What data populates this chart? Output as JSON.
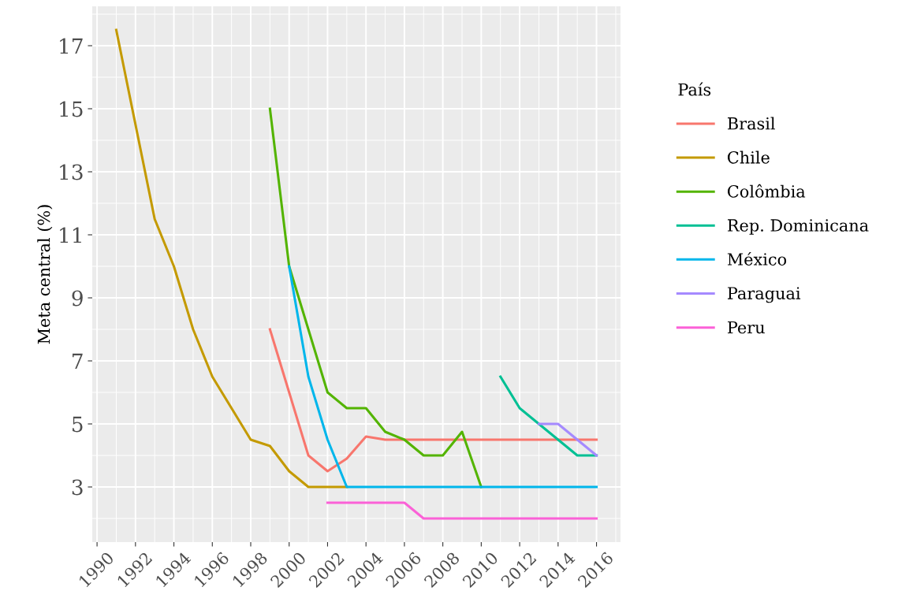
{
  "chart_data": {
    "type": "line",
    "ylabel": "Meta central (%)",
    "legend_title": "País",
    "legend": "right",
    "grid": true,
    "x": [
      1991,
      1992,
      1993,
      1994,
      1995,
      1996,
      1997,
      1998,
      1999,
      2000,
      2001,
      2002,
      2003,
      2004,
      2005,
      2006,
      2007,
      2008,
      2009,
      2010,
      2011,
      2012,
      2013,
      2014,
      2015,
      2016
    ],
    "xlim": [
      1989.75,
      2017.25
    ],
    "xticks": [
      1990,
      1992,
      1994,
      1996,
      1998,
      2000,
      2002,
      2004,
      2006,
      2008,
      2010,
      2012,
      2014,
      2016
    ],
    "ylim": [
      1.25,
      18.25
    ],
    "yticks": [
      3,
      5,
      7,
      9,
      11,
      13,
      15,
      17
    ],
    "series": [
      {
        "name": "Brasil",
        "color": "#f8766d",
        "values": [
          null,
          null,
          null,
          null,
          null,
          null,
          null,
          null,
          8,
          6,
          4,
          3.5,
          3.9,
          4.6,
          4.5,
          4.5,
          4.5,
          4.5,
          4.5,
          4.5,
          4.5,
          4.5,
          4.5,
          4.5,
          4.5,
          4.5
        ]
      },
      {
        "name": "Chile",
        "color": "#c49a00",
        "values": [
          17.5,
          14.5,
          11.5,
          10,
          8,
          6.5,
          5.5,
          4.5,
          4.3,
          3.5,
          3,
          3,
          3,
          null,
          null,
          null,
          null,
          null,
          null,
          null,
          null,
          null,
          null,
          null,
          null,
          null
        ]
      },
      {
        "name": "Colômbia",
        "color": "#53b400",
        "values": [
          null,
          null,
          null,
          null,
          null,
          null,
          null,
          null,
          15,
          10,
          8,
          6,
          5.5,
          5.5,
          4.75,
          4.5,
          4,
          4,
          4.75,
          3,
          null,
          null,
          null,
          null,
          null,
          null
        ]
      },
      {
        "name": "Rep. Dominicana",
        "color": "#00c094",
        "values": [
          null,
          null,
          null,
          null,
          null,
          null,
          null,
          null,
          null,
          null,
          null,
          null,
          null,
          null,
          null,
          null,
          null,
          null,
          null,
          null,
          6.5,
          5.5,
          5,
          4.5,
          4,
          4
        ]
      },
      {
        "name": "México",
        "color": "#00b6eb",
        "values": [
          null,
          null,
          null,
          null,
          null,
          null,
          null,
          null,
          null,
          10,
          6.5,
          4.5,
          3,
          3,
          3,
          3,
          3,
          3,
          3,
          3,
          3,
          3,
          3,
          3,
          3,
          3
        ]
      },
      {
        "name": "Paraguai",
        "color": "#a58aff",
        "values": [
          null,
          null,
          null,
          null,
          null,
          null,
          null,
          null,
          null,
          null,
          null,
          null,
          null,
          null,
          null,
          null,
          null,
          null,
          null,
          null,
          null,
          null,
          5,
          5,
          4.5,
          4
        ]
      },
      {
        "name": "Peru",
        "color": "#fb61d7",
        "values": [
          null,
          null,
          null,
          null,
          null,
          null,
          null,
          null,
          null,
          null,
          null,
          2.5,
          2.5,
          2.5,
          2.5,
          2.5,
          2,
          2,
          2,
          2,
          2,
          2,
          2,
          2,
          2,
          2
        ]
      }
    ]
  }
}
